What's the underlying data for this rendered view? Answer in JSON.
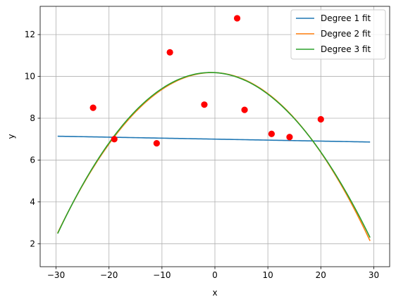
{
  "chart_data": {
    "type": "scatter",
    "title": "",
    "xlabel": "x",
    "ylabel": "y",
    "xlim": [
      -33,
      33
    ],
    "ylim": [
      0.9,
      13.35
    ],
    "xticks": [
      -30,
      -20,
      -10,
      0,
      10,
      20,
      30
    ],
    "xtick_labels": [
      "−30",
      "−20",
      "−10",
      "0",
      "10",
      "20",
      "30"
    ],
    "yticks": [
      2,
      4,
      6,
      8,
      10,
      12
    ],
    "ytick_labels": [
      "2",
      "4",
      "6",
      "8",
      "10",
      "12"
    ],
    "grid": true,
    "legend_position": "top-right",
    "colors": {
      "points": "#ff0000",
      "grid": "#b0b0b0",
      "axes": "#000000"
    },
    "points": {
      "x": [
        -23,
        -19,
        -11,
        -8.5,
        -2,
        4.2,
        5.6,
        10.7,
        14.1,
        20
      ],
      "y": [
        8.5,
        7.0,
        6.8,
        11.15,
        8.65,
        12.78,
        8.4,
        7.25,
        7.1,
        7.95
      ]
    },
    "series": [
      {
        "name": "Degree 1 fit",
        "color": "#1f77b4",
        "degree": 1,
        "coefficients": [
          7.0,
          -0.0047
        ],
        "x_range": [
          -29.7,
          29.3
        ]
      },
      {
        "name": "Degree 2 fit",
        "color": "#ff7f0e",
        "degree": 2,
        "coefficients": [
          10.18,
          -0.01,
          -0.00903
        ],
        "x_range": [
          -29.7,
          29.3
        ]
      },
      {
        "name": "Degree 3 fit",
        "color": "#2ca02c",
        "degree": 3,
        "coefficients": [
          10.18,
          -0.0142,
          -0.00895,
          8.5e-06
        ],
        "x_range": [
          -29.7,
          29.3
        ]
      }
    ]
  }
}
